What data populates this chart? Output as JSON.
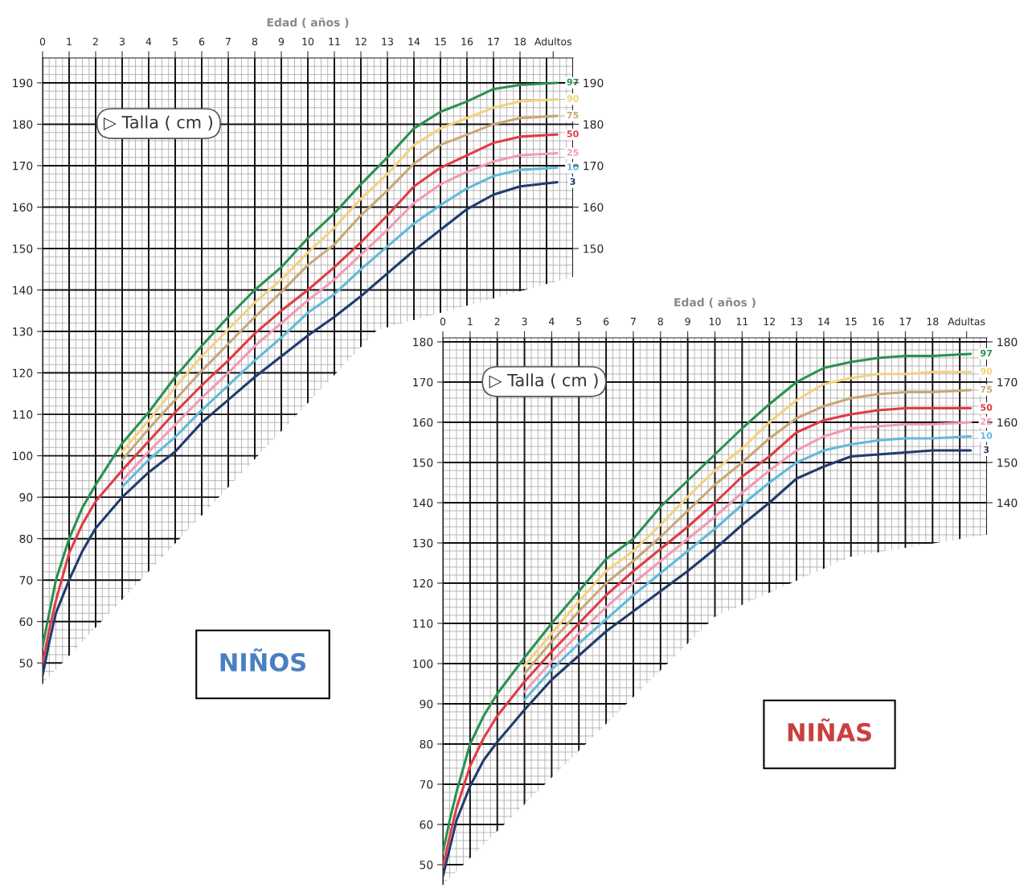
{
  "chart_data": [
    {
      "type": "line",
      "title": "NIÑOS",
      "xlabel": "Edad ( años )",
      "ylabel": "▷ Talla ( cm )",
      "xlim": [
        0,
        20
      ],
      "xticks": [
        0,
        1,
        2,
        3,
        4,
        5,
        6,
        7,
        8,
        9,
        10,
        11,
        12,
        13,
        14,
        15,
        16,
        17,
        18,
        {
          "value": 19.25,
          "label": "Adultos"
        }
      ],
      "ylim": [
        45,
        196
      ],
      "yticks": [
        50,
        60,
        70,
        80,
        90,
        100,
        110,
        120,
        130,
        140,
        150,
        160,
        170,
        180,
        190
      ],
      "y2lim": [
        45,
        196
      ],
      "y2ticks": [
        150,
        160,
        170,
        180,
        190
      ],
      "grid": true,
      "legend": false,
      "marker": "none",
      "line_style": "solid",
      "series": [
        {
          "name": "97",
          "color": "#2a9150",
          "x": [
            0,
            0.25,
            0.5,
            1,
            1.5,
            2,
            3,
            4,
            5,
            6,
            7,
            8,
            9,
            10,
            11,
            12,
            13,
            14,
            15,
            16,
            17,
            18,
            19.4
          ],
          "values": [
            54,
            62,
            70,
            80,
            87.5,
            93,
            103,
            110.5,
            119,
            126.5,
            133.5,
            140,
            145.5,
            152.5,
            158.5,
            165.5,
            172,
            179,
            183,
            185.5,
            188.5,
            189.5,
            190
          ]
        },
        {
          "name": "90",
          "color": "#f3d27e",
          "x": [
            3,
            4,
            5,
            6,
            7,
            8,
            9,
            10,
            11,
            12,
            13,
            14,
            15,
            16,
            17,
            18,
            19.4
          ],
          "values": [
            101,
            108.5,
            116.5,
            124,
            130.5,
            137,
            142.5,
            149,
            155,
            162,
            168,
            175,
            179,
            181.5,
            184,
            185.5,
            186
          ]
        },
        {
          "name": "75",
          "color": "#c9a774",
          "x": [
            3,
            4,
            5,
            6,
            7,
            8,
            9,
            10,
            11,
            12,
            13,
            14,
            15,
            16,
            17,
            18,
            19.4
          ],
          "values": [
            99,
            106.5,
            113.5,
            120.5,
            127,
            133.5,
            139.5,
            146,
            151,
            158,
            164,
            170.5,
            175,
            177.5,
            180,
            181.5,
            182
          ]
        },
        {
          "name": "50",
          "color": "#e03c45",
          "x": [
            0,
            0.25,
            0.5,
            1,
            1.5,
            2,
            3,
            4,
            5,
            6,
            7,
            8,
            9,
            10,
            11,
            12,
            13,
            14,
            15,
            16,
            17,
            18,
            19.4
          ],
          "values": [
            50,
            58,
            65,
            76.5,
            83.5,
            89,
            96.5,
            103.5,
            110.5,
            117,
            123,
            129.5,
            135,
            140,
            145.5,
            151.5,
            158,
            165,
            169.5,
            172.5,
            175.5,
            177,
            177.5
          ]
        },
        {
          "name": "25",
          "color": "#f29ab4",
          "x": [
            3,
            4,
            5,
            6,
            7,
            8,
            9,
            10,
            11,
            12,
            13,
            14,
            15,
            16,
            17,
            18,
            19.4
          ],
          "values": [
            94,
            101,
            107.5,
            114,
            120,
            126.5,
            132,
            137.5,
            142.5,
            148.5,
            154.5,
            161,
            165.5,
            168.5,
            171,
            172.5,
            173
          ]
        },
        {
          "name": "10",
          "color": "#62b9dc",
          "x": [
            3,
            4,
            5,
            6,
            7,
            8,
            9,
            10,
            11,
            12,
            13,
            14,
            15,
            16,
            17,
            18,
            19.4
          ],
          "values": [
            92.5,
            99,
            104.5,
            111,
            117,
            123,
            128.5,
            134.5,
            139,
            145,
            150.5,
            156,
            160.5,
            164.5,
            167.5,
            169,
            169.5
          ]
        },
        {
          "name": "3",
          "color": "#213b6d",
          "x": [
            0,
            0.25,
            0.5,
            1,
            1.5,
            2,
            3,
            4,
            5,
            6,
            7,
            8,
            9,
            10,
            11,
            12,
            13,
            14,
            15,
            16,
            17,
            18,
            19.4
          ],
          "values": [
            47,
            55,
            62,
            70,
            77,
            82.5,
            90,
            96,
            101,
            108,
            113.5,
            119,
            124,
            129,
            133.5,
            138.5,
            144,
            149.5,
            154.5,
            159.5,
            163,
            165,
            166
          ]
        }
      ]
    },
    {
      "type": "line",
      "title": "NIÑAS",
      "xlabel": "Edad ( años )",
      "ylabel": "▷ Talla ( cm )",
      "xlim": [
        0,
        20
      ],
      "xticks": [
        0,
        1,
        2,
        3,
        4,
        5,
        6,
        7,
        8,
        9,
        10,
        11,
        12,
        13,
        14,
        15,
        16,
        17,
        18,
        {
          "value": 19.25,
          "label": "Adultas"
        }
      ],
      "ylim": [
        45,
        181
      ],
      "yticks": [
        50,
        60,
        70,
        80,
        90,
        100,
        110,
        120,
        130,
        140,
        150,
        160,
        170,
        180
      ],
      "y2lim": [
        45,
        181
      ],
      "y2ticks": [
        140,
        150,
        160,
        170,
        180
      ],
      "grid": true,
      "legend": false,
      "marker": "none",
      "line_style": "solid",
      "series": [
        {
          "name": "97",
          "color": "#2a9150",
          "x": [
            0,
            0.25,
            0.5,
            1,
            1.5,
            2,
            3,
            4,
            5,
            6,
            7,
            8,
            9,
            10,
            11,
            12,
            13,
            14,
            15,
            16,
            17,
            18,
            19.4
          ],
          "values": [
            53,
            61,
            68,
            80,
            87,
            92.5,
            101.5,
            110,
            118,
            126,
            131,
            139,
            145.5,
            152,
            158.5,
            164.5,
            170,
            173.5,
            175,
            176,
            176.5,
            176.5,
            177
          ]
        },
        {
          "name": "90",
          "color": "#f3d27e",
          "x": [
            3,
            4,
            5,
            6,
            7,
            8,
            9,
            10,
            11,
            12,
            13,
            14,
            15,
            16,
            17,
            18,
            19.4
          ],
          "values": [
            99.5,
            107.5,
            115.5,
            123,
            128,
            134.5,
            141.5,
            148,
            153.5,
            160,
            165.5,
            169.5,
            171,
            172,
            172,
            172.5,
            172.5
          ]
        },
        {
          "name": "75",
          "color": "#c9a774",
          "x": [
            3,
            4,
            5,
            6,
            7,
            8,
            9,
            10,
            11,
            12,
            13,
            14,
            15,
            16,
            17,
            18,
            19.4
          ],
          "values": [
            97.5,
            105.5,
            113,
            120,
            125.5,
            131.5,
            138,
            144.5,
            150,
            156,
            161,
            164,
            166,
            167,
            167.5,
            167.5,
            168
          ]
        },
        {
          "name": "50",
          "color": "#e03c45",
          "x": [
            0,
            0.25,
            0.5,
            1,
            1.5,
            2,
            3,
            4,
            5,
            6,
            7,
            8,
            9,
            10,
            11,
            12,
            13,
            14,
            15,
            16,
            17,
            18,
            19.4
          ],
          "values": [
            49.5,
            57,
            64,
            74.5,
            81.5,
            87,
            95.5,
            103,
            110,
            117,
            123,
            128.5,
            134,
            140,
            146.5,
            151.5,
            157.5,
            160.5,
            162,
            163,
            163.5,
            163.5,
            163.5
          ]
        },
        {
          "name": "25",
          "color": "#f29ab4",
          "x": [
            3,
            4,
            5,
            6,
            7,
            8,
            9,
            10,
            11,
            12,
            13,
            14,
            15,
            16,
            17,
            18,
            19.4
          ],
          "values": [
            93,
            100.5,
            107.5,
            114,
            120,
            125.5,
            131,
            136.5,
            142.5,
            148,
            153,
            156.5,
            158.5,
            159,
            159.5,
            159.5,
            160
          ]
        },
        {
          "name": "10",
          "color": "#62b9dc",
          "x": [
            3,
            4,
            5,
            6,
            7,
            8,
            9,
            10,
            11,
            12,
            13,
            14,
            15,
            16,
            17,
            18,
            19.4
          ],
          "values": [
            91,
            98.5,
            105,
            111,
            117,
            122.5,
            128,
            133.5,
            139.5,
            145,
            150,
            153,
            154.5,
            155.5,
            156,
            156,
            156.5
          ]
        },
        {
          "name": "3",
          "color": "#213b6d",
          "x": [
            0,
            0.25,
            0.5,
            1,
            1.5,
            2,
            3,
            4,
            5,
            6,
            7,
            8,
            9,
            10,
            11,
            12,
            13,
            14,
            15,
            16,
            17,
            18,
            19.4
          ],
          "values": [
            47,
            54,
            61,
            69.5,
            76,
            80.5,
            88.5,
            96,
            102,
            108,
            113,
            118,
            123,
            128.5,
            134.5,
            140,
            146,
            149,
            151.5,
            152,
            152.5,
            153,
            153
          ]
        }
      ]
    }
  ]
}
